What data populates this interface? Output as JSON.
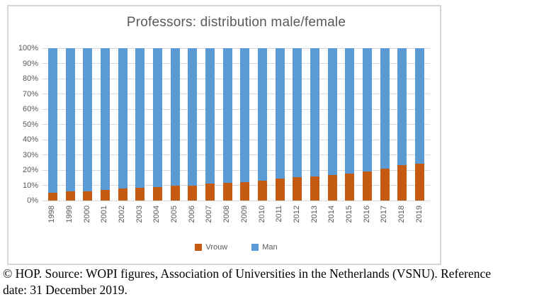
{
  "chart_data": {
    "type": "bar",
    "stacked": true,
    "percent": true,
    "title": "Professors: distribution male/female",
    "categories": [
      "1998",
      "1999",
      "2000",
      "2001",
      "2002",
      "2003",
      "2004",
      "2005",
      "2006",
      "2007",
      "2008",
      "2009",
      "2010",
      "2011",
      "2012",
      "2013",
      "2014",
      "2015",
      "2016",
      "2017",
      "2018",
      "2019"
    ],
    "series": [
      {
        "name": "Vrouw",
        "color": "#C55A11",
        "values": [
          5.0,
          5.9,
          6.2,
          6.9,
          7.8,
          8.3,
          9.0,
          9.7,
          10.0,
          11.0,
          11.6,
          12.3,
          12.8,
          14.3,
          15.2,
          16.0,
          16.9,
          17.7,
          18.9,
          20.8,
          23.1,
          24.2
        ]
      },
      {
        "name": "Man",
        "color": "#5B9BD5",
        "values": [
          95.0,
          94.1,
          93.8,
          93.1,
          92.2,
          91.7,
          91.0,
          90.3,
          90.0,
          89.0,
          88.4,
          87.7,
          87.2,
          85.7,
          84.8,
          84.0,
          83.1,
          82.3,
          81.1,
          79.2,
          76.9,
          75.8
        ]
      }
    ],
    "ylim": [
      0,
      100
    ],
    "yticks": [
      "0%",
      "10%",
      "20%",
      "30%",
      "40%",
      "50%",
      "60%",
      "70%",
      "80%",
      "90%",
      "100%"
    ],
    "grid": true,
    "gridline_color": "#D9D9D9",
    "label_color": "#595959",
    "legend_position": "bottom"
  },
  "caption": {
    "lines": [
      "© HOP. Source: WOPI figures, Association of Universities in the Netherlands (VSNU). Reference",
      "date: 31 December 2019."
    ]
  }
}
